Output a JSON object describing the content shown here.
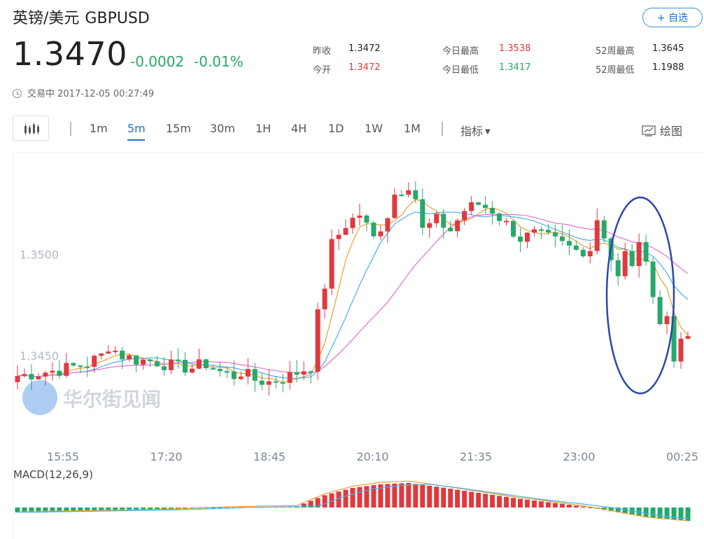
{
  "header": {
    "name": "英镑/美元",
    "symbol": "GBPUSD",
    "fav_label": "+ 自选",
    "price": "1.3470",
    "change": "-0.0002",
    "change_pct": "-0.01%",
    "status": "交易中 2017-12-05 00:27:49"
  },
  "stats": [
    {
      "label": "昨收",
      "value": "1.3472",
      "color": "#222222"
    },
    {
      "label": "今开",
      "value": "1.3472",
      "color": "#e0393e"
    },
    {
      "label": "今日最高",
      "value": "1.3538",
      "color": "#e0393e"
    },
    {
      "label": "今日最低",
      "value": "1.3417",
      "color": "#27a86a"
    },
    {
      "label": "52周最高",
      "value": "1.3645",
      "color": "#222222"
    },
    {
      "label": "52周最低",
      "value": "1.1988",
      "color": "#222222"
    }
  ],
  "toolbar": {
    "timeframes": [
      "1m",
      "5m",
      "15m",
      "30m",
      "1H",
      "4H",
      "1D",
      "1W",
      "1M"
    ],
    "active": "5m",
    "indicator_label": "指标",
    "draw_label": "绘图"
  },
  "watermark": "华尔街见闻",
  "chart_data": {
    "type": "candlestick",
    "interval": "5m",
    "x_ticks": [
      "15:55",
      "17:20",
      "18:45",
      "20:10",
      "21:35",
      "23:00",
      "00:25"
    ],
    "y_ticks": [
      1.35,
      1.345
    ],
    "y_tick_labels": [
      "1.3500",
      "1.3450"
    ],
    "ylim": [
      1.3413,
      1.3547
    ],
    "close_path": [
      [
        0,
        1.344
      ],
      [
        6,
        1.3443
      ],
      [
        10,
        1.3446
      ],
      [
        12,
        1.345
      ],
      [
        13,
        1.3455
      ],
      [
        15,
        1.345
      ],
      [
        17,
        1.3448
      ],
      [
        20,
        1.3447
      ],
      [
        22,
        1.3445
      ],
      [
        25,
        1.3444
      ],
      [
        27,
        1.3446
      ],
      [
        29,
        1.3442
      ],
      [
        31,
        1.344
      ],
      [
        32,
        1.3442
      ],
      [
        34,
        1.3438
      ],
      [
        36,
        1.3437
      ],
      [
        39,
        1.344
      ],
      [
        42,
        1.3445
      ],
      [
        43,
        1.347
      ],
      [
        44,
        1.3485
      ],
      [
        45,
        1.3505
      ],
      [
        47,
        1.3515
      ],
      [
        49,
        1.352
      ],
      [
        51,
        1.3508
      ],
      [
        53,
        1.352
      ],
      [
        54,
        1.353
      ],
      [
        56,
        1.3535
      ],
      [
        57,
        1.3528
      ],
      [
        58,
        1.3512
      ],
      [
        60,
        1.3517
      ],
      [
        62,
        1.3512
      ],
      [
        64,
        1.3522
      ],
      [
        66,
        1.3525
      ],
      [
        68,
        1.3522
      ],
      [
        70,
        1.3515
      ],
      [
        72,
        1.3508
      ],
      [
        74,
        1.351
      ],
      [
        76,
        1.3508
      ],
      [
        78,
        1.3505
      ],
      [
        80,
        1.3502
      ],
      [
        82,
        1.3503
      ],
      [
        83,
        1.3518
      ],
      [
        84,
        1.351
      ],
      [
        85,
        1.3498
      ],
      [
        86,
        1.3488
      ],
      [
        87,
        1.35
      ],
      [
        88,
        1.3496
      ],
      [
        89,
        1.3503
      ],
      [
        90,
        1.35
      ],
      [
        91,
        1.348
      ],
      [
        92,
        1.3465
      ],
      [
        93,
        1.347
      ],
      [
        94,
        1.345
      ],
      [
        95,
        1.3455
      ],
      [
        96,
        1.346
      ]
    ],
    "ma_legend": [],
    "macd_label": "MACD(12,26,9)",
    "macd_hist": [
      [
        0,
        -0.2
      ],
      [
        20,
        -0.1
      ],
      [
        30,
        0.0
      ],
      [
        40,
        0.05
      ],
      [
        44,
        0.5
      ],
      [
        48,
        0.8
      ],
      [
        52,
        0.95
      ],
      [
        56,
        1.0
      ],
      [
        60,
        0.85
      ],
      [
        66,
        0.6
      ],
      [
        72,
        0.35
      ],
      [
        78,
        0.15
      ],
      [
        82,
        0.0
      ],
      [
        86,
        -0.2
      ],
      [
        90,
        -0.4
      ],
      [
        96,
        -0.55
      ]
    ],
    "colors": {
      "up": "#e0393e",
      "down": "#27a86a",
      "ma1": "#f0a030",
      "ma2": "#4ab0e8",
      "ma3": "#e070d0",
      "annotation": "#2c47a8"
    }
  }
}
